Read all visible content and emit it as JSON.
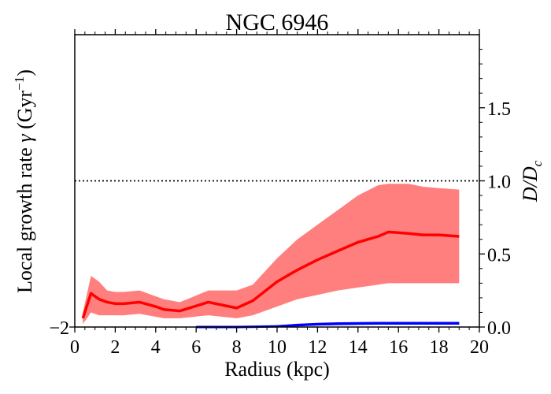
{
  "chart_data": {
    "type": "line",
    "title": "NGC 6946",
    "xlabel": "Radius (kpc)",
    "ylabel": "Local growth rate γ (Gyr⁻¹)",
    "ylabel_main": "Local growth rate ",
    "ylabel_gamma": "γ",
    "ylabel_unit": " (Gyr",
    "ylabel_exp": "−1",
    "ylabel_close": ")",
    "y2label": "D/Dc",
    "y2label_D": "D",
    "y2label_slash": "/",
    "y2label_Dc": "D",
    "y2label_sub": "c",
    "xlim": [
      0,
      20
    ],
    "y2lim": [
      0,
      2.0
    ],
    "xticks": [
      "0",
      "2",
      "4",
      "6",
      "8",
      "10",
      "12",
      "14",
      "16",
      "18",
      "20"
    ],
    "xtick_values": [
      0,
      2,
      4,
      6,
      8,
      10,
      12,
      14,
      16,
      18,
      20
    ],
    "y2ticks": [
      "0.0",
      "0.5",
      "1.0",
      "1.5"
    ],
    "y2tick_values": [
      0.0,
      0.5,
      1.0,
      1.5
    ],
    "yticks_left": [
      "−2"
    ],
    "reference_line": {
      "y": 1.0,
      "style": "dotted"
    },
    "colors": {
      "red_line": "#ff0000",
      "red_band": "#ff7f7f",
      "blue": "#0000ff"
    },
    "series": [
      {
        "color": "#ff0000",
        "x": [
          0.4,
          0.8,
          1.2,
          1.6,
          2.0,
          2.4,
          3.2,
          4.0,
          4.4,
          5.2,
          6.6,
          8.0,
          8.8,
          10.0,
          11.0,
          12.0,
          13.0,
          14.0,
          15.0,
          15.5,
          16.5,
          17.2,
          18.0,
          19.0
        ],
        "y": [
          0.06,
          0.23,
          0.19,
          0.17,
          0.16,
          0.16,
          0.17,
          0.14,
          0.12,
          0.11,
          0.17,
          0.13,
          0.18,
          0.31,
          0.39,
          0.46,
          0.52,
          0.58,
          0.62,
          0.65,
          0.64,
          0.63,
          0.63,
          0.62
        ],
        "band_upper": [
          0.1,
          0.35,
          0.31,
          0.25,
          0.24,
          0.24,
          0.25,
          0.21,
          0.19,
          0.17,
          0.25,
          0.25,
          0.29,
          0.47,
          0.6,
          0.7,
          0.8,
          0.9,
          0.97,
          0.98,
          0.98,
          0.96,
          0.95,
          0.94
        ],
        "band_lower": [
          0.02,
          0.1,
          0.08,
          0.08,
          0.08,
          0.08,
          0.09,
          0.07,
          0.06,
          0.06,
          0.08,
          0.06,
          0.08,
          0.14,
          0.19,
          0.22,
          0.25,
          0.27,
          0.29,
          0.3,
          0.3,
          0.3,
          0.3,
          0.3
        ]
      },
      {
        "color": "#0000ff",
        "x": [
          6.0,
          8.0,
          9.0,
          10.0,
          11.0,
          12.0,
          13.0,
          14.0,
          15.0,
          16.0,
          17.0,
          18.0,
          19.0
        ],
        "y": [
          0.0,
          0.0,
          0.002,
          0.005,
          0.012,
          0.018,
          0.022,
          0.024,
          0.025,
          0.025,
          0.025,
          0.025,
          0.025
        ],
        "band_upper": [
          0.001,
          0.002,
          0.005,
          0.012,
          0.022,
          0.028,
          0.032,
          0.034,
          0.035,
          0.035,
          0.035,
          0.035,
          0.035
        ],
        "band_lower": [
          0.0,
          0.0,
          0.0,
          0.002,
          0.006,
          0.01,
          0.013,
          0.015,
          0.016,
          0.016,
          0.016,
          0.016,
          0.016
        ]
      }
    ]
  }
}
